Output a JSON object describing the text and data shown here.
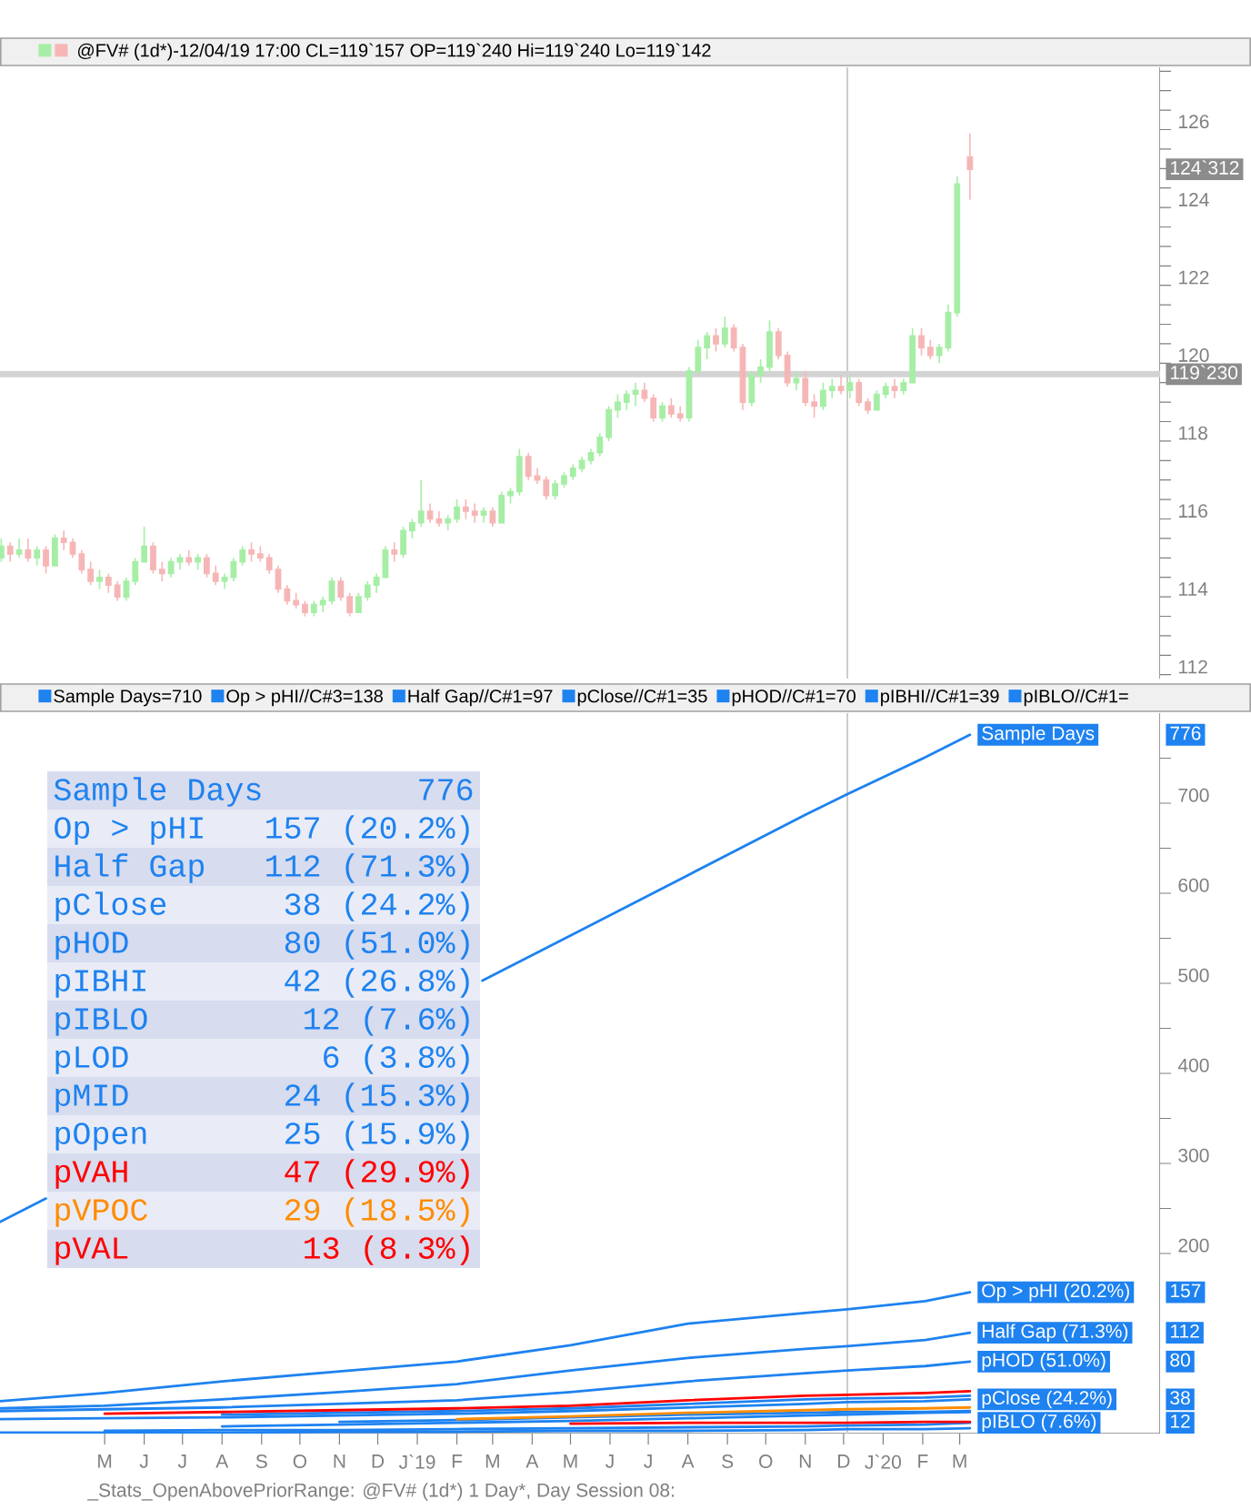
{
  "chart_data": [
    {
      "type": "candlestick",
      "title": "@FV# (1d*)-12/04/19 17:00 CL=119`157 OP=119`240 Hi=119`240 Lo=119`142",
      "x": [
        "2018-02-09",
        "2018-02-16",
        "2018-02-23",
        "2018-03-02",
        "2018-03-09",
        "2018-03-16",
        "2018-03-23",
        "2018-03-30",
        "2018-04-06",
        "2018-04-13",
        "2018-04-20",
        "2018-04-27",
        "2018-05-04",
        "2018-05-11",
        "2018-05-18",
        "2018-05-25",
        "2018-06-01",
        "2018-06-08",
        "2018-06-15",
        "2018-06-22",
        "2018-06-29",
        "2018-07-06",
        "2018-07-13",
        "2018-07-20",
        "2018-07-27",
        "2018-08-03",
        "2018-08-10",
        "2018-08-17",
        "2018-08-24",
        "2018-08-31",
        "2018-09-07",
        "2018-09-14",
        "2018-09-21",
        "2018-09-28",
        "2018-10-05",
        "2018-10-12",
        "2018-10-19",
        "2018-10-26",
        "2018-11-02",
        "2018-11-09",
        "2018-11-16",
        "2018-11-23",
        "2018-11-30",
        "2018-12-07",
        "2018-12-14",
        "2018-12-21",
        "2018-12-28",
        "2019-01-04",
        "2019-01-11",
        "2019-01-18",
        "2019-01-25",
        "2019-02-01",
        "2019-02-08",
        "2019-02-15",
        "2019-02-22",
        "2019-03-01",
        "2019-03-08",
        "2019-03-15",
        "2019-03-22",
        "2019-03-29",
        "2019-04-05",
        "2019-04-12",
        "2019-04-19",
        "2019-04-26",
        "2019-05-03",
        "2019-05-10",
        "2019-05-17",
        "2019-05-24",
        "2019-05-31",
        "2019-06-07",
        "2019-06-14",
        "2019-06-21",
        "2019-06-28",
        "2019-07-05",
        "2019-07-12",
        "2019-07-19",
        "2019-07-26",
        "2019-08-02",
        "2019-08-09",
        "2019-08-16",
        "2019-08-23",
        "2019-08-30",
        "2019-09-06",
        "2019-09-13",
        "2019-09-20",
        "2019-09-27",
        "2019-10-04",
        "2019-10-11",
        "2019-10-18",
        "2019-10-25",
        "2019-11-01",
        "2019-11-08",
        "2019-11-15",
        "2019-11-22",
        "2019-11-29",
        "2019-12-06",
        "2019-12-13",
        "2019-12-20",
        "2019-12-27",
        "2020-01-03",
        "2020-01-10",
        "2020-01-17",
        "2020-01-24",
        "2020-01-31",
        "2020-02-07",
        "2020-02-14",
        "2020-02-21",
        "2020-02-28",
        "2020-03-09"
      ],
      "ohlc": [
        [
          115.0,
          115.5,
          114.9,
          115.3
        ],
        [
          115.3,
          115.4,
          114.9,
          115.1
        ],
        [
          115.1,
          115.5,
          115.0,
          115.2
        ],
        [
          115.2,
          115.5,
          114.9,
          115.0
        ],
        [
          115.0,
          115.3,
          114.8,
          115.2
        ],
        [
          115.2,
          115.3,
          114.6,
          114.8
        ],
        [
          114.8,
          115.6,
          114.8,
          115.5
        ],
        [
          115.5,
          115.7,
          115.2,
          115.4
        ],
        [
          115.4,
          115.5,
          115.0,
          115.1
        ],
        [
          115.1,
          115.2,
          114.6,
          114.7
        ],
        [
          114.7,
          114.9,
          114.3,
          114.4
        ],
        [
          114.4,
          114.7,
          114.2,
          114.5
        ],
        [
          114.5,
          114.6,
          114.1,
          114.3
        ],
        [
          114.3,
          114.4,
          113.9,
          114.0
        ],
        [
          114.0,
          114.5,
          113.9,
          114.4
        ],
        [
          114.4,
          115.0,
          114.3,
          114.9
        ],
        [
          114.9,
          115.8,
          114.9,
          115.3
        ],
        [
          115.3,
          115.4,
          114.6,
          114.7
        ],
        [
          114.7,
          114.9,
          114.4,
          114.6
        ],
        [
          114.6,
          115.0,
          114.5,
          114.9
        ],
        [
          114.9,
          115.1,
          114.7,
          115.0
        ],
        [
          115.0,
          115.2,
          114.8,
          114.9
        ],
        [
          114.9,
          115.1,
          114.7,
          115.0
        ],
        [
          115.0,
          115.1,
          114.5,
          114.6
        ],
        [
          114.6,
          114.8,
          114.3,
          114.4
        ],
        [
          114.4,
          114.6,
          114.2,
          114.5
        ],
        [
          114.5,
          115.0,
          114.4,
          114.9
        ],
        [
          114.9,
          115.3,
          114.8,
          115.2
        ],
        [
          115.2,
          115.4,
          114.9,
          115.1
        ],
        [
          115.1,
          115.3,
          114.9,
          115.0
        ],
        [
          115.0,
          115.1,
          114.6,
          114.7
        ],
        [
          114.7,
          114.8,
          114.1,
          114.2
        ],
        [
          114.2,
          114.3,
          113.8,
          113.9
        ],
        [
          113.9,
          114.1,
          113.7,
          113.8
        ],
        [
          113.8,
          113.9,
          113.5,
          113.6
        ],
        [
          113.6,
          113.9,
          113.5,
          113.8
        ],
        [
          113.8,
          114.0,
          113.6,
          113.9
        ],
        [
          113.9,
          114.5,
          113.8,
          114.4
        ],
        [
          114.4,
          114.5,
          113.9,
          114.0
        ],
        [
          114.0,
          114.1,
          113.5,
          113.6
        ],
        [
          113.6,
          114.1,
          113.6,
          114.0
        ],
        [
          114.0,
          114.4,
          113.9,
          114.3
        ],
        [
          114.3,
          114.6,
          114.1,
          114.5
        ],
        [
          114.5,
          115.3,
          114.5,
          115.2
        ],
        [
          115.2,
          115.4,
          114.9,
          115.1
        ],
        [
          115.1,
          115.8,
          115.0,
          115.7
        ],
        [
          115.7,
          116.0,
          115.5,
          115.9
        ],
        [
          115.9,
          117.0,
          115.8,
          116.2
        ],
        [
          116.2,
          116.4,
          115.9,
          116.0
        ],
        [
          116.0,
          116.2,
          115.8,
          115.9
        ],
        [
          115.9,
          116.1,
          115.7,
          116.0
        ],
        [
          116.0,
          116.5,
          115.9,
          116.3
        ],
        [
          116.3,
          116.5,
          116.0,
          116.2
        ],
        [
          116.2,
          116.4,
          115.9,
          116.1
        ],
        [
          116.1,
          116.3,
          115.9,
          116.2
        ],
        [
          116.2,
          116.3,
          115.8,
          115.9
        ],
        [
          115.9,
          116.7,
          115.9,
          116.6
        ],
        [
          116.6,
          116.8,
          116.4,
          116.7
        ],
        [
          116.7,
          117.8,
          116.6,
          117.6
        ],
        [
          117.6,
          117.7,
          117.0,
          117.1
        ],
        [
          117.1,
          117.3,
          116.9,
          117.0
        ],
        [
          117.0,
          117.1,
          116.5,
          116.6
        ],
        [
          116.6,
          117.0,
          116.5,
          116.9
        ],
        [
          116.9,
          117.2,
          116.8,
          117.1
        ],
        [
          117.1,
          117.4,
          117.0,
          117.3
        ],
        [
          117.3,
          117.6,
          117.2,
          117.5
        ],
        [
          117.5,
          117.8,
          117.4,
          117.7
        ],
        [
          117.7,
          118.2,
          117.6,
          118.1
        ],
        [
          118.1,
          118.9,
          118.0,
          118.8
        ],
        [
          118.8,
          119.2,
          118.6,
          119.0
        ],
        [
          119.0,
          119.3,
          118.8,
          119.2
        ],
        [
          119.2,
          119.5,
          118.9,
          119.3
        ],
        [
          119.3,
          119.5,
          119.0,
          119.1
        ],
        [
          119.1,
          119.2,
          118.5,
          118.6
        ],
        [
          118.6,
          119.0,
          118.5,
          118.9
        ],
        [
          118.9,
          119.1,
          118.6,
          118.7
        ],
        [
          118.7,
          118.9,
          118.5,
          118.6
        ],
        [
          118.6,
          119.9,
          118.5,
          119.8
        ],
        [
          119.8,
          120.6,
          119.7,
          120.4
        ],
        [
          120.4,
          120.8,
          120.1,
          120.7
        ],
        [
          120.7,
          120.9,
          120.3,
          120.5
        ],
        [
          120.5,
          121.2,
          120.4,
          120.9
        ],
        [
          120.9,
          121.0,
          120.3,
          120.4
        ],
        [
          120.4,
          120.5,
          118.8,
          119.0
        ],
        [
          119.0,
          119.8,
          118.9,
          119.7
        ],
        [
          119.7,
          120.1,
          119.5,
          119.9
        ],
        [
          119.9,
          121.1,
          119.8,
          120.8
        ],
        [
          120.8,
          120.9,
          120.1,
          120.2
        ],
        [
          120.2,
          120.3,
          119.4,
          119.5
        ],
        [
          119.5,
          119.8,
          119.3,
          119.6
        ],
        [
          119.6,
          119.8,
          118.9,
          119.0
        ],
        [
          119.0,
          119.2,
          118.6,
          118.9
        ],
        [
          118.9,
          119.5,
          118.8,
          119.3
        ],
        [
          119.3,
          119.6,
          119.1,
          119.4
        ],
        [
          119.4,
          119.7,
          119.2,
          119.3
        ],
        [
          119.3,
          119.7,
          119.1,
          119.5
        ],
        [
          119.5,
          119.6,
          118.9,
          119.0
        ],
        [
          119.0,
          119.1,
          118.7,
          118.8
        ],
        [
          118.8,
          119.3,
          118.8,
          119.2
        ],
        [
          119.2,
          119.5,
          119.1,
          119.4
        ],
        [
          119.4,
          119.6,
          119.1,
          119.3
        ],
        [
          119.3,
          119.6,
          119.2,
          119.5
        ],
        [
          119.5,
          120.9,
          119.5,
          120.7
        ],
        [
          120.7,
          120.9,
          120.2,
          120.4
        ],
        [
          120.4,
          120.6,
          120.1,
          120.2
        ],
        [
          120.2,
          120.5,
          120.0,
          120.4
        ],
        [
          120.4,
          121.5,
          120.3,
          121.3
        ],
        [
          121.3,
          124.8,
          121.2,
          124.6
        ],
        [
          125.3,
          125.9,
          124.2,
          124.98
        ]
      ],
      "colors": [
        "#a6eea6",
        "#f6b6b6",
        "#a6eea6",
        "#f6b6b6",
        "#a6eea6",
        "#f6b6b6",
        "#a6eea6",
        "#f6b6b6",
        "#f6b6b6",
        "#f6b6b6",
        "#f6b6b6",
        "#a6eea6",
        "#f6b6b6",
        "#f6b6b6",
        "#a6eea6",
        "#a6eea6",
        "#a6eea6",
        "#f6b6b6",
        "#f6b6b6",
        "#a6eea6",
        "#a6eea6",
        "#f6b6b6",
        "#a6eea6",
        "#f6b6b6",
        "#f6b6b6",
        "#a6eea6",
        "#a6eea6",
        "#a6eea6",
        "#f6b6b6",
        "#f6b6b6",
        "#f6b6b6",
        "#f6b6b6",
        "#f6b6b6",
        "#f6b6b6",
        "#f6b6b6",
        "#a6eea6",
        "#a6eea6",
        "#a6eea6",
        "#f6b6b6",
        "#f6b6b6",
        "#a6eea6",
        "#a6eea6",
        "#a6eea6",
        "#a6eea6",
        "#f6b6b6",
        "#a6eea6",
        "#a6eea6",
        "#a6eea6",
        "#f6b6b6",
        "#f6b6b6",
        "#a6eea6",
        "#a6eea6",
        "#f6b6b6",
        "#f6b6b6",
        "#a6eea6",
        "#f6b6b6",
        "#a6eea6",
        "#a6eea6",
        "#a6eea6",
        "#f6b6b6",
        "#f6b6b6",
        "#f6b6b6",
        "#a6eea6",
        "#a6eea6",
        "#a6eea6",
        "#a6eea6",
        "#a6eea6",
        "#a6eea6",
        "#a6eea6",
        "#a6eea6",
        "#a6eea6",
        "#a6eea6",
        "#f6b6b6",
        "#f6b6b6",
        "#a6eea6",
        "#f6b6b6",
        "#f6b6b6",
        "#a6eea6",
        "#a6eea6",
        "#a6eea6",
        "#f6b6b6",
        "#a6eea6",
        "#f6b6b6",
        "#f6b6b6",
        "#a6eea6",
        "#a6eea6",
        "#a6eea6",
        "#f6b6b6",
        "#f6b6b6",
        "#a6eea6",
        "#f6b6b6",
        "#f6b6b6",
        "#a6eea6",
        "#a6eea6",
        "#f6b6b6",
        "#a6eea6",
        "#f6b6b6",
        "#f6b6b6",
        "#a6eea6",
        "#a6eea6",
        "#f6b6b6",
        "#a6eea6",
        "#a6eea6",
        "#f6b6b6",
        "#f6b6b6",
        "#a6eea6",
        "#a6eea6",
        "#a6eea6",
        "#f6b6b6"
      ],
      "xlim": [
        "2018-02-08",
        "2020-08-05"
      ],
      "ylim": [
        111.9,
        127.6
      ],
      "yticks": [
        112,
        {
          "value": 112.5,
          "label": null
        },
        {
          "value": 113,
          "label": null
        },
        {
          "value": 113.5,
          "label": null
        },
        114,
        {
          "value": 114.5,
          "label": null
        },
        {
          "value": 115,
          "label": null
        },
        {
          "value": 115.5,
          "label": null
        },
        116,
        {
          "value": 116.5,
          "label": null
        },
        {
          "value": 117,
          "label": null
        },
        {
          "value": 117.5,
          "label": null
        },
        118,
        {
          "value": 118.5,
          "label": null
        },
        {
          "value": 119,
          "label": null
        },
        {
          "value": 119.5,
          "label": null
        },
        120,
        {
          "value": 120.5,
          "label": null
        },
        {
          "value": 121,
          "label": null
        },
        {
          "value": 121.5,
          "label": null
        },
        122,
        {
          "value": 122.5,
          "label": null
        },
        {
          "value": 123,
          "label": null
        },
        {
          "value": 123.5,
          "label": null
        },
        124,
        {
          "value": 124.5,
          "label": null
        },
        {
          "value": 125,
          "label": null
        },
        {
          "value": 125.5,
          "label": null
        },
        126,
        {
          "value": 126.5,
          "label": null
        },
        {
          "value": 127,
          "label": null
        },
        {
          "value": 127.5,
          "label": null
        }
      ],
      "tick_labels": "y",
      "ref_lines": [
        {
          "axis": "x",
          "value": "2019-12-04",
          "color": "#c8c8c8"
        },
        {
          "axis": "y",
          "value": 119.72,
          "color": "#d3d3d3"
        }
      ],
      "annotations": [
        "124`312",
        "119`230"
      ]
    },
    {
      "type": "line",
      "legend": "right",
      "x": [
        "2018-02-08",
        "2018-05-01",
        "2018-08-01",
        "2018-11-01",
        "2019-02-01",
        "2019-05-01",
        "2019-08-01",
        "2019-11-01",
        "2019-12-04",
        "2020-02-03",
        "2020-03-09"
      ],
      "series": [
        {
          "name": "Sample Days",
          "color": "#1e82f0",
          "x": [
            "2018-02-08",
            "2018-03-16",
            "2018-08-01",
            "2019-02-21",
            "2019-05-01",
            "2019-08-01",
            "2019-11-01",
            "2019-12-04",
            "2020-02-03",
            "2020-03-09"
          ],
          "values": [
            235,
            261,
            null,
            503,
            553,
            620,
            687,
            710,
            751,
            776
          ]
        },
        {
          "name": "Op > pHI (20.2%)",
          "color": "#1e82f0",
          "values": [
            36,
            45,
            58,
            69,
            80,
            98,
            122,
            134,
            138,
            147,
            157
          ]
        },
        {
          "name": "Half Gap (71.3%)",
          "color": "#1e82f0",
          "values": [
            28,
            31,
            38,
            46,
            55,
            70,
            84,
            94,
            97,
            104,
            112
          ]
        },
        {
          "name": "pClose (24.2%)",
          "color": "#1e82f0",
          "values": [
            16,
            17,
            18,
            20,
            22,
            25,
            29,
            33,
            35,
            36,
            38
          ]
        },
        {
          "name": "pHOD (51.0%)",
          "color": "#1e82f0",
          "values": [
            25,
            27,
            29,
            33,
            37,
            46,
            58,
            67,
            70,
            75,
            80
          ]
        },
        {
          "color": "#1e82f0",
          "values": [
            null,
            null,
            21,
            23,
            25,
            28,
            33,
            38,
            39,
            40,
            42
          ]
        },
        {
          "name": "pIBLO (7.6%)",
          "color": "#1e82f0",
          "values": [
            null,
            3,
            4,
            4,
            5,
            6,
            7,
            8,
            9,
            10,
            12
          ]
        },
        {
          "color": "#1e82f0",
          "values": [
            1,
            1,
            1,
            2,
            2,
            3,
            3,
            4,
            5,
            5,
            6
          ]
        },
        {
          "color": "#1e82f0",
          "values": [
            null,
            null,
            8,
            10,
            12,
            14,
            17,
            20,
            21,
            23,
            24
          ]
        },
        {
          "color": "#1e82f0",
          "values": [
            null,
            null,
            null,
            13,
            15,
            18,
            21,
            23,
            24,
            24,
            25
          ]
        },
        {
          "color": "#ff0000",
          "values": [
            null,
            22,
            24,
            26,
            28,
            31,
            37,
            42,
            43,
            45,
            47
          ]
        },
        {
          "color": "#ff8c00",
          "values": [
            null,
            null,
            null,
            null,
            16,
            19,
            23,
            26,
            27,
            28,
            29
          ]
        },
        {
          "color": "#ff0000",
          "values": [
            null,
            null,
            null,
            null,
            null,
            11,
            12,
            12,
            12,
            13,
            13
          ]
        }
      ],
      "xlim": [
        "2018-02-08",
        "2020-08-05"
      ],
      "xticks": [
        {
          "value": "2018-05-01",
          "label": "M"
        },
        {
          "value": "2018-06-01",
          "label": "J"
        },
        {
          "value": "2018-07-01",
          "label": "J"
        },
        {
          "value": "2018-08-01",
          "label": "A"
        },
        {
          "value": "2018-09-01",
          "label": "S"
        },
        {
          "value": "2018-10-01",
          "label": "O"
        },
        {
          "value": "2018-11-01",
          "label": "N"
        },
        {
          "value": "2018-12-01",
          "label": "D"
        },
        {
          "value": "2019-01-01",
          "label": "J`19"
        },
        {
          "value": "2019-02-01",
          "label": "F"
        },
        {
          "value": "2019-03-01",
          "label": "M"
        },
        {
          "value": "2019-04-01",
          "label": "A"
        },
        {
          "value": "2019-05-01",
          "label": "M"
        },
        {
          "value": "2019-06-01",
          "label": "J"
        },
        {
          "value": "2019-07-01",
          "label": "J"
        },
        {
          "value": "2019-08-01",
          "label": "A"
        },
        {
          "value": "2019-09-01",
          "label": "S"
        },
        {
          "value": "2019-10-01",
          "label": "O"
        },
        {
          "value": "2019-11-01",
          "label": "N"
        },
        {
          "value": "2019-12-01",
          "label": "D"
        },
        {
          "value": "2020-01-01",
          "label": "J`20"
        },
        {
          "value": "2020-02-01",
          "label": "F"
        },
        {
          "value": "2020-03-01",
          "label": "M"
        }
      ],
      "ylim": [
        0,
        800
      ],
      "yticks": [
        200,
        {
          "value": 250,
          "label": null
        },
        300,
        {
          "value": 350,
          "label": null
        },
        400,
        {
          "value": 450,
          "label": null
        },
        500,
        {
          "value": 550,
          "label": null
        },
        600,
        {
          "value": 650,
          "label": null
        },
        700,
        {
          "value": 750,
          "label": null
        }
      ],
      "ref_lines": [
        {
          "axis": "x",
          "value": "2019-12-04",
          "color": "#c8c8c8"
        }
      ],
      "annotations": [
        "Sample Days=710",
        "Op > pHI//C#3=138",
        "Half Gap//C#1=97",
        "pClose//C#1=35",
        "pHOD//C#1=70",
        "pIBHI//C#1=39",
        "pIBLO//C#1=",
        "Sample Days",
        "776",
        "Op > pHI",
        "157 (20.2%)",
        "Half Gap",
        "112 (71.3%)",
        "pClose",
        "38 (24.2%)",
        "pHOD",
        "80 (51.0%)",
        "pIBHI",
        "42 (26.8%)",
        "pIBLO",
        "12 (7.6%)",
        "pLOD",
        "6 (3.8%)",
        "pMID",
        "24 (15.3%)",
        "pOpen",
        "25 (15.9%)",
        "pVAH",
        "47 (29.9%)",
        "pVPOC",
        "29 (18.5%)",
        "pVAL",
        "13 (8.3%)",
        "776",
        "157",
        "112",
        "38",
        "80",
        "12",
        "_Stats_OpenAbovePriorRange: @FV# (1d*) 1 Day*, Day Session 08:"
      ]
    }
  ]
}
